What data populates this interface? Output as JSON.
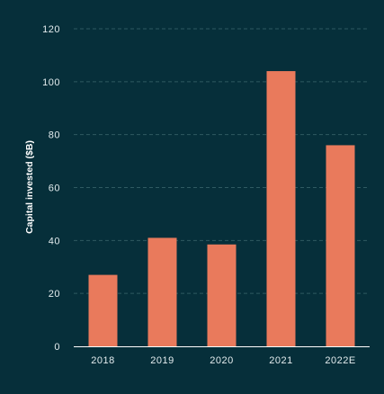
{
  "chart_data": {
    "type": "bar",
    "categories": [
      "2018",
      "2019",
      "2020",
      "2021",
      "2022E"
    ],
    "values": [
      27,
      41,
      38.5,
      104,
      76
    ],
    "title": "",
    "xlabel": "",
    "ylabel": "Capital invested ($B)",
    "ylim": [
      0,
      120
    ],
    "yticks": [
      0,
      20,
      40,
      60,
      80,
      100,
      120
    ],
    "grid": true,
    "legend": "none",
    "colors": {
      "background": "#062F3A",
      "bar": "#E97A5C",
      "gridline": "#2F5A62",
      "axis": "#FFFFFF",
      "text": "#E3ECEE"
    }
  }
}
